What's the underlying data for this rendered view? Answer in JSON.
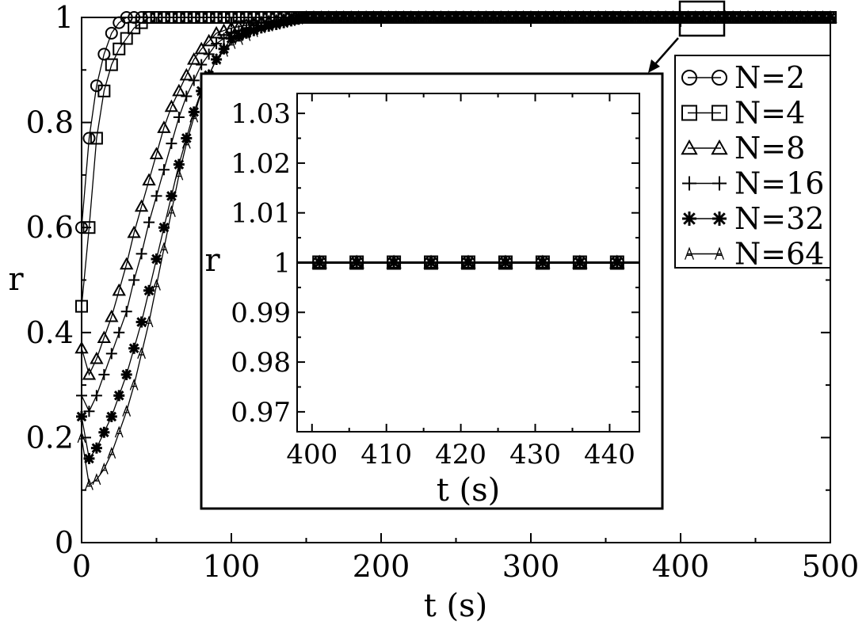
{
  "chart_data": {
    "type": "line",
    "xlabel": "t (s)",
    "ylabel": "r",
    "xlim": [
      0,
      500
    ],
    "ylim": [
      0,
      1
    ],
    "x_ticks": [
      0,
      100,
      200,
      300,
      400,
      500
    ],
    "x_tick_labels": [
      "0",
      "100",
      "200",
      "300",
      "400",
      "500"
    ],
    "y_ticks": [
      0,
      0.2,
      0.4,
      0.6,
      0.8,
      1
    ],
    "y_tick_labels": [
      "0",
      "0.2",
      "0.4",
      "0.6",
      "0.8",
      "1"
    ],
    "grid": false,
    "legend_position": "top-right",
    "series": [
      {
        "name": "N=2",
        "marker": "circle",
        "x": [
          0,
          5,
          10,
          15,
          20,
          25,
          30,
          35,
          40,
          45,
          50,
          60,
          70,
          80,
          100,
          150,
          200,
          250,
          300,
          350,
          400,
          450,
          500
        ],
        "y": [
          0.6,
          0.77,
          0.87,
          0.93,
          0.97,
          0.99,
          1.0,
          1.0,
          1.0,
          1.0,
          1.0,
          1.0,
          1.0,
          1.0,
          1.0,
          1.0,
          1.0,
          1.0,
          1.0,
          1.0,
          1.0,
          1.0,
          1.0
        ]
      },
      {
        "name": "N=4",
        "marker": "square",
        "x": [
          0,
          5,
          10,
          15,
          20,
          25,
          30,
          35,
          40,
          45,
          50,
          60,
          70,
          80,
          100,
          150,
          200,
          250,
          300,
          350,
          400,
          450,
          500
        ],
        "y": [
          0.45,
          0.6,
          0.77,
          0.86,
          0.91,
          0.94,
          0.96,
          0.98,
          0.99,
          1.0,
          1.0,
          1.0,
          1.0,
          1.0,
          1.0,
          1.0,
          1.0,
          1.0,
          1.0,
          1.0,
          1.0,
          1.0,
          1.0
        ]
      },
      {
        "name": "N=8",
        "marker": "triangle",
        "x": [
          0,
          5,
          10,
          15,
          20,
          25,
          30,
          35,
          40,
          45,
          50,
          55,
          60,
          65,
          70,
          75,
          80,
          90,
          100,
          120,
          150,
          200,
          250,
          300,
          350,
          400,
          450,
          500
        ],
        "y": [
          0.37,
          0.32,
          0.35,
          0.39,
          0.43,
          0.48,
          0.53,
          0.59,
          0.64,
          0.69,
          0.74,
          0.79,
          0.83,
          0.86,
          0.89,
          0.92,
          0.94,
          0.97,
          0.98,
          0.99,
          1.0,
          1.0,
          1.0,
          1.0,
          1.0,
          1.0,
          1.0,
          1.0
        ]
      },
      {
        "name": "N=16",
        "marker": "plus",
        "x": [
          0,
          5,
          10,
          15,
          20,
          25,
          30,
          35,
          40,
          45,
          50,
          55,
          60,
          65,
          70,
          75,
          80,
          90,
          100,
          120,
          150,
          200,
          250,
          300,
          350,
          400,
          450,
          500
        ],
        "y": [
          0.28,
          0.25,
          0.28,
          0.32,
          0.36,
          0.4,
          0.44,
          0.5,
          0.55,
          0.61,
          0.66,
          0.71,
          0.76,
          0.81,
          0.85,
          0.88,
          0.91,
          0.95,
          0.97,
          0.99,
          1.0,
          1.0,
          1.0,
          1.0,
          1.0,
          1.0,
          1.0,
          1.0
        ]
      },
      {
        "name": "N=32",
        "marker": "star",
        "x": [
          0,
          5,
          10,
          15,
          20,
          25,
          30,
          35,
          40,
          45,
          50,
          55,
          60,
          65,
          70,
          75,
          80,
          90,
          100,
          120,
          150,
          200,
          250,
          300,
          350,
          400,
          450,
          500
        ],
        "y": [
          0.24,
          0.16,
          0.18,
          0.21,
          0.24,
          0.28,
          0.32,
          0.37,
          0.42,
          0.48,
          0.54,
          0.6,
          0.66,
          0.72,
          0.77,
          0.82,
          0.86,
          0.92,
          0.96,
          0.98,
          1.0,
          1.0,
          1.0,
          1.0,
          1.0,
          1.0,
          1.0,
          1.0
        ]
      },
      {
        "name": "N=64",
        "marker": "A",
        "x": [
          0,
          5,
          10,
          15,
          20,
          25,
          30,
          35,
          40,
          45,
          50,
          55,
          60,
          65,
          70,
          75,
          80,
          90,
          100,
          120,
          150,
          200,
          250,
          300,
          350,
          400,
          450,
          500
        ],
        "y": [
          0.2,
          0.11,
          0.12,
          0.14,
          0.17,
          0.21,
          0.25,
          0.3,
          0.36,
          0.42,
          0.49,
          0.56,
          0.63,
          0.7,
          0.76,
          0.81,
          0.86,
          0.92,
          0.95,
          0.98,
          1.0,
          1.0,
          1.0,
          1.0,
          1.0,
          1.0,
          1.0,
          1.0
        ]
      }
    ],
    "inset": {
      "xlabel": "t (s)",
      "ylabel": "r",
      "xlim": [
        398,
        444
      ],
      "ylim": [
        0.966,
        1.034
      ],
      "x_ticks": [
        400,
        410,
        420,
        430,
        440
      ],
      "x_tick_labels": [
        "400",
        "410",
        "420",
        "430",
        "440"
      ],
      "y_ticks": [
        0.97,
        0.98,
        0.99,
        1,
        1.01,
        1.02,
        1.03
      ],
      "y_tick_labels": [
        "0.97",
        "0.98",
        "0.99",
        "1",
        "1.01",
        "1.02",
        "1.03"
      ],
      "series_y": 1.0,
      "marker_x": [
        401,
        406,
        411,
        416,
        421,
        426,
        431,
        436,
        441
      ]
    }
  }
}
